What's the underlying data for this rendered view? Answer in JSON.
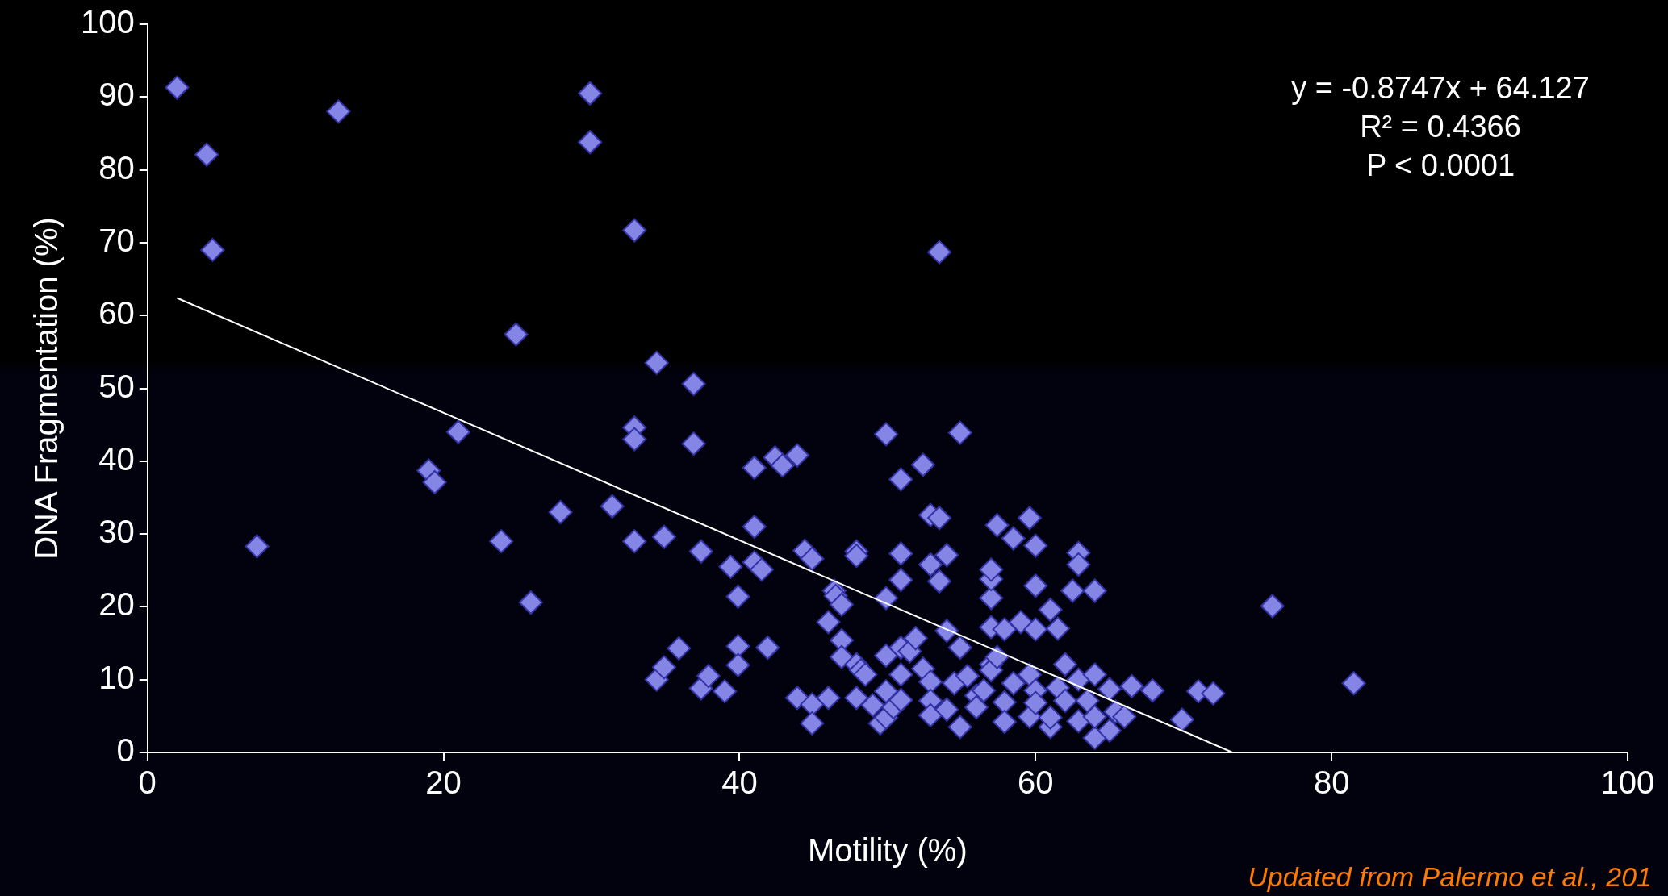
{
  "chart_data": {
    "type": "scatter",
    "xlabel": "Motility (%)",
    "ylabel": "DNA Fragmentation (%)",
    "xlim": [
      0,
      100
    ],
    "xticks": [
      0,
      20,
      40,
      60,
      80,
      100
    ],
    "ylim": [
      0,
      100
    ],
    "yticks": [
      0,
      10,
      20,
      30,
      40,
      50,
      60,
      70,
      80,
      90,
      100
    ],
    "grid": false,
    "legend": false,
    "marker": "diamond",
    "annotations": [
      "y = -0.8747x + 64.127",
      "R² = 0.4366",
      "P < 0.0001",
      "Updated from Palermo et al., 201"
    ],
    "series": [
      {
        "color": "#8585e6",
        "x": [
          2.0,
          4.0,
          4.4,
          12.9,
          29.9,
          29.9,
          32.9,
          53.5,
          7.4,
          24.9,
          34.4,
          36.9,
          21.0,
          19.0,
          19.4,
          23.9,
          25.9,
          27.9,
          31.4,
          32.9,
          32.9,
          32.9,
          34.9,
          36.9,
          37.4,
          34.4,
          34.9,
          35.9,
          37.4,
          37.9,
          39.0,
          39.4,
          39.9,
          39.9,
          39.9,
          41.0,
          41.0,
          41.0,
          41.5,
          41.9,
          42.4,
          42.9,
          43.9,
          43.9,
          44.9,
          44.9,
          46.0,
          44.4,
          44.9,
          46.0,
          46.4,
          46.5,
          46.9,
          46.9,
          46.9,
          47.9,
          47.9,
          47.9,
          48.2,
          48.5,
          47.9,
          49.0,
          49.5,
          49.9,
          49.9,
          49.9,
          49.9,
          49.9,
          50.4,
          50.9,
          50.9,
          50.9,
          50.9,
          50.9,
          50.9,
          51.5,
          51.9,
          52.4,
          52.9,
          53.5,
          52.9,
          53.5,
          54.0,
          54.0,
          52.4,
          52.9,
          52.9,
          52.9,
          54.0,
          54.5,
          54.9,
          54.9,
          54.9,
          55.4,
          56.0,
          56.0,
          56.5,
          57.0,
          57.0,
          57.0,
          57.0,
          57.0,
          57.0,
          57.4,
          57.4,
          57.9,
          57.9,
          57.9,
          58.5,
          58.5,
          59.0,
          59.6,
          59.6,
          59.6,
          60.0,
          60.0,
          60.0,
          60.0,
          60.0,
          61.0,
          61.5,
          61.0,
          61.0,
          61.5,
          62.0,
          62.0,
          62.5,
          62.9,
          62.9,
          62.9,
          62.9,
          63.5,
          64.0,
          64.0,
          64.0,
          64.0,
          65.0,
          65.0,
          65.4,
          66.0,
          66.5,
          67.9,
          69.9,
          71.0,
          72.0,
          76.0,
          81.5
        ],
        "values": [
          91.3,
          82.1,
          69.0,
          88.0,
          90.5,
          83.8,
          71.7,
          68.7,
          28.3,
          57.4,
          53.5,
          50.6,
          44.0,
          38.7,
          37.1,
          29.0,
          20.6,
          33.0,
          33.8,
          44.6,
          43.0,
          29.0,
          29.6,
          42.4,
          27.6,
          10.0,
          11.7,
          14.3,
          8.8,
          10.5,
          8.4,
          25.5,
          21.4,
          14.6,
          12.0,
          39.1,
          31.0,
          26.1,
          25.1,
          14.4,
          40.5,
          39.4,
          40.8,
          7.5,
          6.6,
          4.0,
          7.5,
          27.7,
          26.6,
          17.9,
          22.2,
          21.5,
          20.3,
          15.4,
          13.1,
          27.6,
          27.0,
          12.1,
          11.3,
          10.7,
          7.5,
          6.5,
          4.0,
          43.7,
          21.2,
          13.3,
          8.4,
          4.8,
          6.2,
          37.5,
          27.3,
          23.7,
          14.4,
          10.7,
          7.2,
          13.9,
          15.7,
          39.5,
          32.6,
          32.2,
          25.8,
          23.5,
          27.1,
          16.7,
          11.5,
          9.7,
          7.1,
          5.1,
          5.9,
          9.5,
          43.9,
          14.4,
          3.5,
          10.5,
          7.8,
          6.2,
          8.5,
          12.1,
          11.3,
          17.2,
          21.2,
          23.8,
          25.1,
          31.2,
          13.1,
          16.9,
          6.9,
          4.2,
          29.4,
          9.5,
          17.9,
          32.2,
          10.7,
          4.9,
          28.4,
          22.9,
          16.9,
          8.5,
          6.8,
          19.6,
          17.0,
          3.5,
          4.8,
          8.9,
          12.1,
          7.1,
          22.2,
          27.4,
          25.8,
          4.3,
          10.0,
          7.1,
          22.2,
          10.7,
          2.0,
          4.9,
          8.7,
          3.0,
          5.6,
          4.9,
          9.1,
          8.5,
          4.5,
          8.4,
          8.1,
          20.1,
          9.5
        ]
      },
      {
        "type": "line",
        "color": "#ffffff",
        "marker": "none",
        "x": [
          2.0,
          73.3
        ],
        "values": [
          62.4,
          0.0
        ]
      }
    ]
  }
}
